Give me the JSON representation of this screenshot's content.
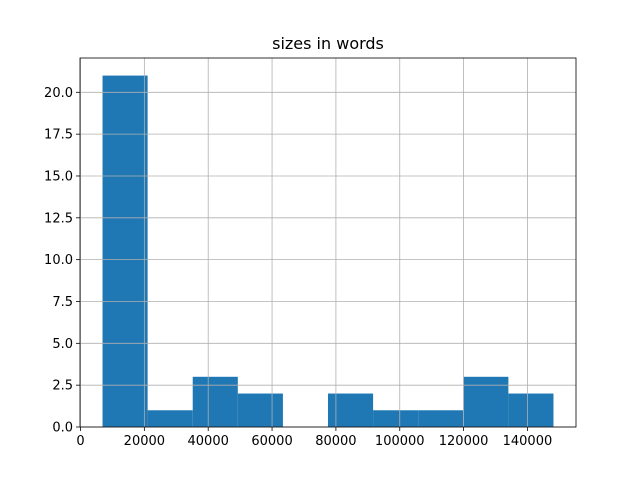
{
  "chart_data": {
    "type": "histogram",
    "title": "sizes in words",
    "bins": [
      6900,
      21025,
      35150,
      49275,
      63400,
      77525,
      91650,
      105775,
      119900,
      134025,
      148150
    ],
    "values": [
      21,
      1,
      3,
      2,
      0,
      2,
      1,
      1,
      3,
      2
    ],
    "color": "#1f77b4",
    "xlim": [
      -160,
      155210
    ],
    "xticks": [
      0,
      20000,
      40000,
      60000,
      80000,
      100000,
      120000,
      140000
    ],
    "ylim": [
      0,
      22.05
    ],
    "yticks": [
      {
        "value": 0,
        "label": "0.0"
      },
      {
        "value": 2.5,
        "label": "2.5"
      },
      {
        "value": 5,
        "label": "5.0"
      },
      {
        "value": 7.5,
        "label": "7.5"
      },
      {
        "value": 10,
        "label": "10.0"
      },
      {
        "value": 12.5,
        "label": "12.5"
      },
      {
        "value": 15,
        "label": "15.0"
      },
      {
        "value": 17.5,
        "label": "17.5"
      },
      {
        "value": 20,
        "label": "20.0"
      }
    ],
    "grid": true
  }
}
